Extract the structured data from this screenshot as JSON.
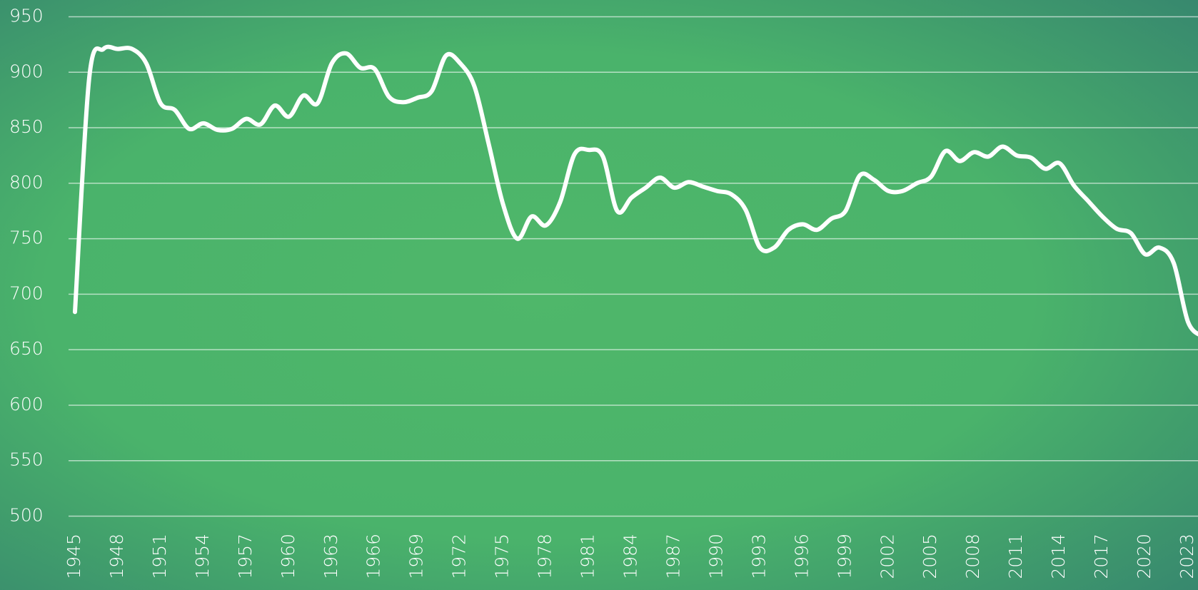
{
  "chart_data": {
    "type": "line",
    "x": [
      1945,
      1946,
      1947,
      1948,
      1949,
      1950,
      1951,
      1952,
      1953,
      1954,
      1955,
      1956,
      1957,
      1958,
      1959,
      1960,
      1961,
      1962,
      1963,
      1964,
      1965,
      1966,
      1967,
      1968,
      1969,
      1970,
      1971,
      1972,
      1973,
      1974,
      1975,
      1976,
      1977,
      1978,
      1979,
      1980,
      1981,
      1982,
      1983,
      1984,
      1985,
      1986,
      1987,
      1988,
      1989,
      1990,
      1991,
      1992,
      1993,
      1994,
      1995,
      1996,
      1997,
      1998,
      1999,
      2000,
      2001,
      2002,
      2003,
      2004,
      2005,
      2006,
      2007,
      2008,
      2009,
      2010,
      2011,
      2012,
      2013,
      2014,
      2015,
      2016,
      2017,
      2018,
      2019,
      2020,
      2021,
      2022,
      2023,
      2024
    ],
    "series": [
      {
        "color": "#ffffff",
        "values": [
          684,
          895,
          921,
          921,
          921,
          908,
          872,
          866,
          849,
          854,
          848,
          849,
          858,
          853,
          870,
          860,
          879,
          872,
          908,
          917,
          904,
          903,
          878,
          873,
          877,
          883,
          915,
          908,
          887,
          835,
          781,
          750,
          770,
          762,
          783,
          826,
          830,
          824,
          775,
          787,
          796,
          805,
          796,
          801,
          797,
          793,
          790,
          776,
          742,
          742,
          758,
          763,
          758,
          768,
          775,
          807,
          803,
          793,
          793,
          800,
          806,
          829,
          820,
          828,
          824,
          833,
          825,
          823,
          813,
          818,
          798,
          784,
          770,
          759,
          755,
          736,
          742,
          728,
          675,
          662
        ]
      }
    ],
    "xlim": [
      1944.5,
      2023.7
    ],
    "xticks": [
      1945,
      1948,
      1951,
      1954,
      1957,
      1960,
      1963,
      1966,
      1969,
      1972,
      1975,
      1978,
      1981,
      1984,
      1987,
      1990,
      1993,
      1996,
      1999,
      2002,
      2005,
      2008,
      2011,
      2014,
      2017,
      2020,
      2023
    ],
    "ylim": [
      500,
      950
    ],
    "yticks": [
      500,
      550,
      600,
      650,
      700,
      750,
      800,
      850,
      900,
      950
    ],
    "grid": true
  }
}
